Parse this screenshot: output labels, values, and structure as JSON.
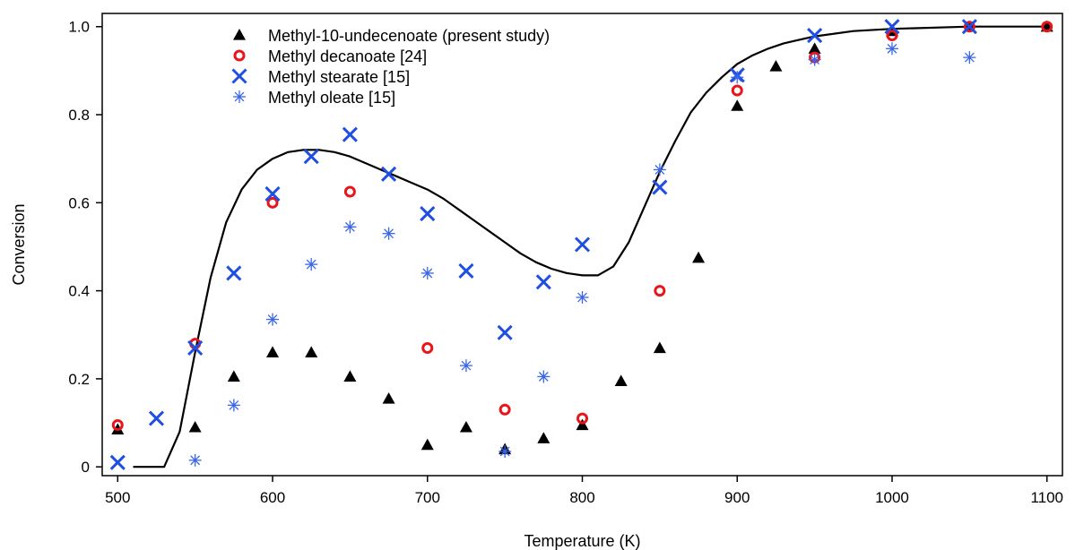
{
  "chart_data": {
    "type": "scatter",
    "title": "",
    "xlabel": "Temperature (K)",
    "ylabel": "Conversion",
    "xlim": [
      490,
      1110
    ],
    "ylim": [
      -0.02,
      1.03
    ],
    "xticks": [
      500,
      600,
      700,
      800,
      900,
      1000,
      1100
    ],
    "yticks": [
      0,
      0.2,
      0.4,
      0.6,
      0.8,
      1.0
    ],
    "ytick_labels": [
      "0",
      "0.2",
      "0.4",
      "0.6",
      "0.8",
      "1.0"
    ],
    "grid": false,
    "legend_position": "top-left",
    "series": [
      {
        "name": "Methyl-10-undecenoate (present study)",
        "marker": "triangle",
        "color": "#000000",
        "x": [
          500,
          550,
          575,
          600,
          625,
          650,
          675,
          700,
          725,
          750,
          775,
          800,
          825,
          850,
          875,
          900,
          925,
          950,
          1000,
          1050,
          1100
        ],
        "y": [
          0.085,
          0.09,
          0.205,
          0.26,
          0.26,
          0.205,
          0.155,
          0.05,
          0.09,
          0.04,
          0.065,
          0.095,
          0.195,
          0.27,
          0.475,
          0.82,
          0.91,
          0.95,
          0.99,
          1.0,
          1.0
        ]
      },
      {
        "name": "Methyl decanoate [24]",
        "marker": "circle",
        "color": "#e8161b",
        "x": [
          500,
          550,
          600,
          650,
          700,
          750,
          800,
          850,
          900,
          950,
          1000,
          1050,
          1100
        ],
        "y": [
          0.095,
          0.28,
          0.6,
          0.625,
          0.27,
          0.13,
          0.11,
          0.4,
          0.855,
          0.93,
          0.98,
          1.0,
          1.0
        ]
      },
      {
        "name": "Methyl stearate [15]",
        "marker": "x",
        "color": "#1f4fe0",
        "x": [
          500,
          525,
          550,
          575,
          600,
          625,
          650,
          675,
          700,
          725,
          750,
          775,
          800,
          850,
          900,
          950,
          1000,
          1050
        ],
        "y": [
          0.01,
          0.11,
          0.27,
          0.44,
          0.62,
          0.705,
          0.755,
          0.665,
          0.575,
          0.445,
          0.305,
          0.42,
          0.505,
          0.635,
          0.89,
          0.98,
          1.0,
          1.0
        ]
      },
      {
        "name": "Methyl oleate [15]",
        "marker": "asterisk",
        "color": "#3a66e8",
        "x": [
          550,
          575,
          600,
          625,
          650,
          675,
          700,
          725,
          750,
          775,
          800,
          850,
          900,
          950,
          1000,
          1050
        ],
        "y": [
          0.015,
          0.14,
          0.335,
          0.46,
          0.545,
          0.53,
          0.44,
          0.23,
          0.035,
          0.205,
          0.385,
          0.675,
          0.885,
          0.925,
          0.95,
          0.93
        ]
      },
      {
        "name": "",
        "type": "line",
        "color": "#000000",
        "x": [
          510,
          530,
          540,
          550,
          560,
          570,
          580,
          590,
          600,
          610,
          620,
          630,
          640,
          650,
          660,
          670,
          680,
          690,
          700,
          710,
          720,
          730,
          740,
          750,
          760,
          770,
          780,
          790,
          800,
          810,
          820,
          830,
          840,
          850,
          860,
          870,
          880,
          890,
          900,
          910,
          920,
          930,
          950,
          975,
          1000,
          1050,
          1100
        ],
        "y": [
          0.0,
          0.0,
          0.08,
          0.26,
          0.43,
          0.555,
          0.63,
          0.675,
          0.7,
          0.715,
          0.72,
          0.72,
          0.715,
          0.705,
          0.69,
          0.675,
          0.66,
          0.645,
          0.63,
          0.61,
          0.585,
          0.56,
          0.535,
          0.51,
          0.485,
          0.465,
          0.45,
          0.44,
          0.435,
          0.435,
          0.455,
          0.51,
          0.59,
          0.67,
          0.74,
          0.805,
          0.85,
          0.885,
          0.915,
          0.935,
          0.95,
          0.962,
          0.978,
          0.99,
          0.995,
          1.0,
          1.0
        ]
      }
    ]
  }
}
